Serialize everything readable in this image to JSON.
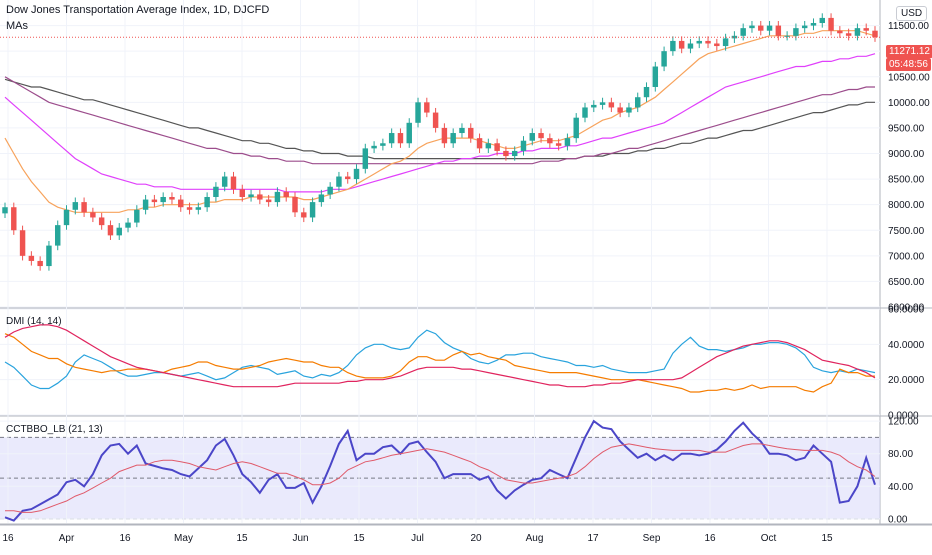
{
  "header": {
    "title": "Dow Jones Transportation Average Index, 1D, DJCFD",
    "ma_label": "MAs",
    "currency": "USD",
    "last_price": "11271.12",
    "countdown": "05:48:56"
  },
  "colors": {
    "up": "#26a69a",
    "down": "#ef5350",
    "ma_fast": "#f7a35c",
    "ma_mid": "#e040fb",
    "ma_slow": "#9c4d8c",
    "ma_long": "#555555",
    "di_plus": "#29a3dd",
    "di_minus": "#f57c00",
    "adx": "#e0245e",
    "osc": "#4b46c8",
    "osc_signal": "#e05a6a",
    "band": "#dcdcfa"
  },
  "chart_data": [
    {
      "type": "candlestick",
      "title": "Dow Jones Transportation Average Index, 1D, DJCFD",
      "ylim": [
        6000,
        12000
      ],
      "y_ticks": [
        "6000.00",
        "6500.00",
        "7000.00",
        "7500.00",
        "8000.00",
        "8500.00",
        "9000.00",
        "9500.00",
        "10000.00",
        "10500.00",
        "11000.00",
        "11500.00"
      ],
      "x_ticks": [
        "16",
        "Apr",
        "16",
        "May",
        "15",
        "Jun",
        "15",
        "Jul",
        "20",
        "Aug",
        "17",
        "Sep",
        "16",
        "Oct",
        "15"
      ],
      "close": [
        7950,
        7500,
        7000,
        6900,
        6800,
        7200,
        7600,
        7900,
        8050,
        7850,
        7750,
        7600,
        7400,
        7550,
        7650,
        7900,
        8100,
        8050,
        8150,
        8100,
        7950,
        7900,
        7950,
        8150,
        8350,
        8550,
        8300,
        8150,
        8200,
        8100,
        8050,
        8250,
        8150,
        7850,
        7750,
        8050,
        8200,
        8350,
        8550,
        8500,
        8700,
        9100,
        9150,
        9200,
        9400,
        9200,
        9600,
        10000,
        9800,
        9500,
        9200,
        9400,
        9500,
        9300,
        9100,
        9200,
        9050,
        8950,
        9050,
        9250,
        9400,
        9300,
        9200,
        9150,
        9300,
        9700,
        9900,
        9950,
        10000,
        9900,
        9800,
        9900,
        10100,
        10300,
        10700,
        11000,
        11200,
        11050,
        11150,
        11200,
        11150,
        11100,
        11250,
        11300,
        11450,
        11500,
        11400,
        11500,
        11300,
        11300,
        11450,
        11500,
        11550,
        11650,
        11400,
        11350,
        11300,
        11450,
        11400,
        11271
      ],
      "ma_fast": [
        9300,
        9000,
        8700,
        8450,
        8250,
        8050,
        7950,
        7900,
        7850,
        7850,
        7850,
        7850,
        7850,
        7850,
        7900,
        7900,
        7950,
        7950,
        8000,
        8000,
        8000,
        8000,
        8000,
        8050,
        8050,
        8100,
        8100,
        8100,
        8150,
        8150,
        8150,
        8150,
        8150,
        8150,
        8100,
        8100,
        8150,
        8200,
        8250,
        8300,
        8400,
        8500,
        8600,
        8700,
        8800,
        8850,
        8950,
        9100,
        9200,
        9250,
        9300,
        9300,
        9300,
        9300,
        9250,
        9200,
        9150,
        9100,
        9100,
        9150,
        9200,
        9250,
        9250,
        9250,
        9300,
        9350,
        9450,
        9550,
        9650,
        9700,
        9800,
        9850,
        9900,
        10000,
        10100,
        10250,
        10400,
        10550,
        10700,
        10850,
        10950,
        11000,
        11050,
        11100,
        11150,
        11200,
        11250,
        11300,
        11300,
        11300,
        11300,
        11350,
        11350,
        11400,
        11400,
        11400,
        11400,
        11400,
        11350,
        11300
      ],
      "ma_mid": [
        10100,
        9950,
        9800,
        9650,
        9500,
        9350,
        9200,
        9050,
        8900,
        8800,
        8700,
        8600,
        8550,
        8500,
        8450,
        8400,
        8400,
        8350,
        8350,
        8350,
        8300,
        8300,
        8300,
        8300,
        8300,
        8300,
        8300,
        8300,
        8300,
        8300,
        8300,
        8300,
        8250,
        8250,
        8250,
        8250,
        8250,
        8300,
        8300,
        8300,
        8350,
        8400,
        8450,
        8500,
        8550,
        8600,
        8650,
        8700,
        8750,
        8800,
        8850,
        8850,
        8900,
        8900,
        8950,
        8950,
        9000,
        9000,
        9000,
        9050,
        9050,
        9100,
        9100,
        9100,
        9150,
        9150,
        9200,
        9250,
        9300,
        9300,
        9350,
        9400,
        9450,
        9500,
        9550,
        9600,
        9700,
        9800,
        9900,
        10000,
        10100,
        10200,
        10300,
        10350,
        10400,
        10450,
        10500,
        10550,
        10600,
        10650,
        10700,
        10700,
        10750,
        10800,
        10800,
        10850,
        10850,
        10900,
        10900,
        10950
      ],
      "ma_slow": [
        10500,
        10400,
        10300,
        10200,
        10100,
        10000,
        9950,
        9900,
        9850,
        9800,
        9750,
        9700,
        9650,
        9600,
        9550,
        9500,
        9450,
        9400,
        9350,
        9300,
        9250,
        9200,
        9150,
        9100,
        9100,
        9050,
        9000,
        9000,
        8950,
        8950,
        8900,
        8900,
        8850,
        8850,
        8850,
        8800,
        8800,
        8800,
        8800,
        8800,
        8800,
        8800,
        8800,
        8800,
        8800,
        8800,
        8800,
        8800,
        8800,
        8800,
        8800,
        8800,
        8800,
        8800,
        8800,
        8800,
        8800,
        8800,
        8800,
        8800,
        8800,
        8850,
        8850,
        8850,
        8900,
        8900,
        8950,
        8950,
        9000,
        9000,
        9050,
        9100,
        9100,
        9150,
        9200,
        9250,
        9300,
        9350,
        9400,
        9450,
        9500,
        9550,
        9600,
        9650,
        9700,
        9750,
        9800,
        9850,
        9900,
        9950,
        10000,
        10050,
        10100,
        10150,
        10150,
        10200,
        10250,
        10250,
        10300,
        10300
      ],
      "ma_long": [
        10450,
        10400,
        10350,
        10300,
        10300,
        10250,
        10200,
        10150,
        10100,
        10050,
        10050,
        10000,
        9950,
        9900,
        9850,
        9800,
        9750,
        9700,
        9650,
        9600,
        9550,
        9500,
        9500,
        9450,
        9400,
        9350,
        9300,
        9250,
        9250,
        9200,
        9200,
        9150,
        9100,
        9100,
        9050,
        9050,
        9000,
        9000,
        9000,
        8950,
        8950,
        8950,
        8900,
        8900,
        8900,
        8900,
        8900,
        8900,
        8900,
        8900,
        8900,
        8900,
        8900,
        8900,
        8900,
        8900,
        8900,
        8900,
        8900,
        8900,
        8900,
        8900,
        8900,
        8900,
        8900,
        8900,
        8950,
        8950,
        8950,
        9000,
        9000,
        9000,
        9050,
        9050,
        9100,
        9100,
        9150,
        9200,
        9200,
        9250,
        9300,
        9300,
        9350,
        9400,
        9450,
        9450,
        9500,
        9550,
        9600,
        9650,
        9700,
        9750,
        9800,
        9800,
        9850,
        9900,
        9950,
        9950,
        10000,
        10000
      ]
    },
    {
      "type": "line",
      "title": "DMI (14, 14)",
      "ylim": [
        0,
        60
      ],
      "y_ticks": [
        "0.0000",
        "20.0000",
        "40.0000",
        "60.0000"
      ],
      "series": [
        {
          "values": [
            30,
            27,
            22,
            17,
            15,
            15,
            18,
            22,
            30,
            34,
            32,
            30,
            27,
            24,
            22,
            22,
            23,
            24,
            24,
            23,
            22,
            23,
            24,
            22,
            20,
            21,
            24,
            27,
            28,
            27,
            26,
            23,
            24,
            25,
            22,
            21,
            23,
            22,
            24,
            28,
            34,
            38,
            40,
            40,
            38,
            37,
            38,
            44,
            48,
            46,
            41,
            38,
            36,
            32,
            30,
            29,
            31,
            34,
            34,
            35,
            35,
            33,
            32,
            31,
            30,
            28,
            28,
            27,
            28,
            26,
            25,
            24,
            24,
            24,
            25,
            26,
            35,
            40,
            44,
            39,
            37,
            37,
            36,
            37,
            38,
            40,
            40,
            41,
            41,
            40,
            38,
            34,
            27,
            25,
            24,
            25,
            24,
            26,
            25,
            24
          ]
        },
        {
          "values": [
            46,
            44,
            40,
            36,
            34,
            32,
            32,
            29,
            27,
            26,
            25,
            24,
            25,
            25,
            26,
            26,
            26,
            25,
            24,
            26,
            27,
            28,
            30,
            30,
            28,
            27,
            26,
            26,
            27,
            28,
            30,
            31,
            32,
            31,
            30,
            30,
            28,
            27,
            27,
            24,
            22,
            21,
            21,
            21,
            22,
            25,
            30,
            33,
            33,
            31,
            31,
            34,
            36,
            34,
            35,
            33,
            32,
            31,
            28,
            27,
            26,
            25,
            24,
            24,
            24,
            24,
            23,
            22,
            21,
            20,
            20,
            20,
            20,
            19,
            18,
            17,
            16,
            15,
            13,
            13,
            14,
            14,
            15,
            14,
            15,
            17,
            15,
            16,
            16,
            16,
            16,
            14,
            13,
            16,
            18,
            26,
            24,
            24,
            22,
            22
          ]
        },
        {
          "values": [
            44,
            47,
            49,
            50,
            51,
            51,
            50,
            48,
            45,
            42,
            39,
            36,
            33,
            31,
            29,
            27,
            26,
            25,
            24,
            23,
            22,
            21,
            20,
            19,
            18,
            17,
            16,
            16,
            16,
            16,
            16,
            16,
            17,
            18,
            18,
            18,
            18,
            18,
            18,
            19,
            19,
            20,
            20,
            20,
            21,
            22,
            24,
            26,
            27,
            27,
            27,
            27,
            26,
            26,
            25,
            24,
            23,
            22,
            21,
            20,
            19,
            18,
            17,
            17,
            16,
            16,
            16,
            17,
            17,
            18,
            18,
            19,
            20,
            20,
            20,
            20,
            20,
            21,
            24,
            27,
            30,
            33,
            35,
            37,
            39,
            40,
            41,
            42,
            42,
            41,
            39,
            37,
            34,
            31,
            30,
            29,
            28,
            26,
            24,
            21
          ]
        }
      ]
    },
    {
      "type": "line",
      "title": "CCTBBO_LB (21, 13)",
      "ylim": [
        -5,
        125
      ],
      "y_ticks": [
        "0.00",
        "40.00",
        "80.00",
        "120.00"
      ],
      "bands": [
        0,
        50,
        100
      ],
      "series": [
        {
          "values": [
            2,
            -2,
            10,
            12,
            18,
            24,
            30,
            45,
            48,
            40,
            55,
            78,
            90,
            92,
            80,
            90,
            68,
            65,
            62,
            60,
            55,
            52,
            62,
            72,
            90,
            98,
            78,
            55,
            45,
            32,
            48,
            55,
            38,
            38,
            44,
            20,
            40,
            65,
            92,
            108,
            72,
            80,
            80,
            88,
            90,
            80,
            92,
            95,
            82,
            70,
            50,
            55,
            55,
            55,
            48,
            52,
            35,
            25,
            35,
            42,
            48,
            50,
            60,
            55,
            50,
            75,
            100,
            120,
            112,
            110,
            95,
            85,
            75,
            80,
            72,
            78,
            72,
            80,
            80,
            78,
            80,
            85,
            95,
            108,
            118,
            105,
            95,
            80,
            80,
            78,
            72,
            75,
            90,
            80,
            70,
            20,
            22,
            40,
            75,
            42
          ]
        },
        {
          "values": [
            10,
            10,
            8,
            8,
            10,
            14,
            18,
            22,
            28,
            32,
            38,
            44,
            50,
            58,
            62,
            66,
            66,
            70,
            72,
            72,
            70,
            68,
            64,
            62,
            60,
            64,
            68,
            70,
            68,
            64,
            60,
            56,
            56,
            52,
            48,
            42,
            42,
            44,
            50,
            60,
            65,
            70,
            72,
            75,
            78,
            80,
            82,
            84,
            86,
            84,
            82,
            78,
            74,
            70,
            64,
            60,
            54,
            48,
            46,
            44,
            44,
            46,
            48,
            50,
            52,
            56,
            64,
            74,
            82,
            88,
            90,
            92,
            90,
            88,
            86,
            85,
            84,
            84,
            84,
            84,
            82,
            82,
            82,
            86,
            90,
            92,
            92,
            90,
            88,
            86,
            85,
            84,
            84,
            84,
            82,
            78,
            70,
            64,
            60,
            52
          ]
        }
      ]
    }
  ]
}
